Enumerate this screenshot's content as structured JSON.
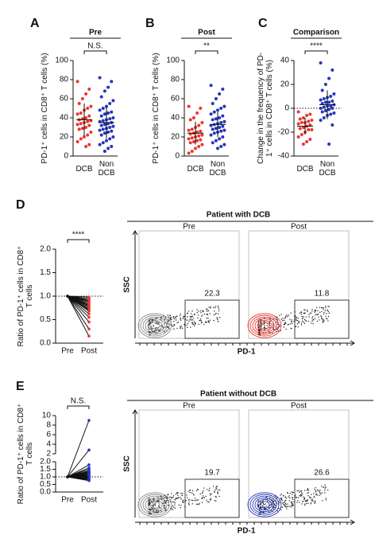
{
  "chart_data": [
    {
      "type": "strip",
      "label": "A",
      "title": "Pre",
      "ylabel": "PD-1⁺ cells in CD8⁺ T cells (%)",
      "categories": [
        "DCB",
        "Non DCB"
      ],
      "ylim": [
        0,
        100
      ],
      "yticks": [
        0,
        20,
        40,
        60,
        80,
        100
      ],
      "annotation": "N.S.",
      "series": [
        {
          "color": "#e8382f",
          "mean": 38,
          "sd": 17,
          "values": [
            78,
            70,
            65,
            60,
            55,
            52,
            50,
            48,
            45,
            44,
            42,
            40,
            39,
            38,
            37,
            36,
            35,
            34,
            33,
            32,
            30,
            29,
            28,
            25,
            22,
            20,
            18,
            15,
            12,
            10
          ]
        },
        {
          "color": "#2536b8",
          "mean": 35,
          "sd": 17,
          "values": [
            82,
            78,
            72,
            68,
            62,
            58,
            55,
            52,
            50,
            48,
            46,
            45,
            44,
            42,
            40,
            39,
            38,
            37,
            36,
            35,
            34,
            33,
            32,
            31,
            30,
            29,
            28,
            27,
            26,
            25,
            24,
            22,
            20,
            18,
            16,
            14,
            12,
            10,
            8,
            5
          ]
        }
      ]
    },
    {
      "type": "strip",
      "label": "B",
      "title": "Post",
      "ylabel": "PD-1⁺ cells in CD8⁺ T cells (%)",
      "categories": [
        "DCB",
        "Non DCB"
      ],
      "ylim": [
        0,
        100
      ],
      "yticks": [
        0,
        20,
        40,
        60,
        80,
        100
      ],
      "annotation": "**",
      "series": [
        {
          "color": "#e8382f",
          "mean": 24,
          "sd": 12,
          "values": [
            52,
            50,
            45,
            40,
            38,
            35,
            32,
            30,
            28,
            27,
            26,
            25,
            24,
            23,
            22,
            21,
            20,
            19,
            18,
            17,
            16,
            15,
            14,
            12,
            10,
            8,
            5,
            3
          ]
        },
        {
          "color": "#2536b8",
          "mean": 33,
          "sd": 13,
          "values": [
            74,
            70,
            65,
            60,
            55,
            52,
            50,
            48,
            46,
            44,
            42,
            40,
            39,
            38,
            36,
            35,
            34,
            33,
            32,
            31,
            30,
            29,
            28,
            27,
            26,
            25,
            24,
            22,
            20,
            18,
            16,
            14,
            12,
            10,
            8
          ]
        }
      ]
    },
    {
      "type": "strip",
      "label": "C",
      "title": "Comparison",
      "ylabel": "Change in the frequency of PD-1⁺ cells in CD8⁺ T cells (%)",
      "categories": [
        "DCB",
        "Non DCB"
      ],
      "ylim": [
        -40,
        40
      ],
      "yticks": [
        -40,
        -20,
        0,
        20,
        40
      ],
      "refline": 0,
      "annotation": "****",
      "series": [
        {
          "color": "#e8382f",
          "mean": -15,
          "sd": 7,
          "values": [
            -3,
            -5,
            -6,
            -8,
            -9,
            -10,
            -11,
            -12,
            -12,
            -13,
            -14,
            -15,
            -16,
            -17,
            -18,
            -18,
            -20,
            -22,
            -24,
            -26,
            -28,
            -30
          ]
        },
        {
          "color": "#2536b8",
          "mean": 3,
          "sd": 12,
          "values": [
            38,
            32,
            25,
            20,
            15,
            12,
            10,
            9,
            8,
            7,
            6,
            5,
            5,
            4,
            3,
            2,
            2,
            1,
            0,
            0,
            -1,
            -2,
            -3,
            -4,
            -5,
            -6,
            -8,
            -10,
            -14,
            -30
          ]
        }
      ]
    },
    {
      "type": "paired",
      "label": "D",
      "ylabel": "Ratio of PD-1⁺ cells in CD8⁺ T cells",
      "categories": [
        "Pre",
        "Post"
      ],
      "ylim": [
        0,
        2
      ],
      "yticks": [
        {
          "value": 0,
          "label": "0.0"
        },
        0.5,
        {
          "value": 1,
          "label": "1.0"
        },
        1.5,
        {
          "value": 2,
          "label": "2.0"
        }
      ],
      "refline": 1,
      "annotation": "****",
      "color": "#e8382f",
      "pre": [
        1,
        1,
        1,
        1,
        1,
        1,
        1,
        1,
        1,
        1,
        1,
        1,
        1,
        1,
        1,
        1,
        1,
        1
      ],
      "post": [
        0.98,
        0.95,
        0.92,
        0.9,
        0.88,
        0.85,
        0.82,
        0.8,
        0.78,
        0.75,
        0.72,
        0.7,
        0.68,
        0.62,
        0.55,
        0.45,
        0.3,
        0.15
      ]
    },
    {
      "type": "flow",
      "title": "Patient with DCB",
      "xlabel": "PD-1",
      "ylabel": "SSC",
      "panels": [
        {
          "title": "Pre",
          "gate": 22.3,
          "color": "#8a8a8a"
        },
        {
          "title": "Post",
          "gate": 11.8,
          "color": "#e8382f"
        }
      ]
    },
    {
      "type": "paired",
      "label": "E",
      "ylabel": "Ratio of PD-1⁺ cells in CD8⁺ T cells",
      "categories": [
        "Pre",
        "Post"
      ],
      "ylim": [
        0,
        2
      ],
      "yticks": [
        {
          "value": 0,
          "label": "0.0"
        },
        0.5,
        {
          "value": 1,
          "label": "1.0"
        },
        1.5,
        {
          "value": 2,
          "label": "2.0"
        }
      ],
      "ylim_upper": [
        2,
        10
      ],
      "yticks_upper": [
        2,
        4,
        6,
        8,
        10
      ],
      "refline": 1,
      "annotation": "N.S.",
      "color": "#2536b8",
      "pre": [
        1,
        1,
        1,
        1,
        1,
        1,
        1,
        1,
        1,
        1,
        1,
        1,
        1,
        1,
        1,
        1,
        1,
        1,
        1,
        1,
        1,
        1
      ],
      "post": [
        9,
        2.8,
        1.8,
        1.6,
        1.5,
        1.4,
        1.35,
        1.3,
        1.25,
        1.2,
        1.15,
        1.1,
        1.05,
        1.02,
        1,
        0.98,
        0.95,
        0.92,
        0.9,
        0.85,
        0.8,
        0.75
      ]
    },
    {
      "type": "flow",
      "title": "Patient without DCB",
      "xlabel": "PD-1",
      "ylabel": "SSC",
      "panels": [
        {
          "title": "Pre",
          "gate": 19.7,
          "color": "#8a8a8a"
        },
        {
          "title": "Post",
          "gate": 26.6,
          "color": "#2536b8"
        }
      ]
    }
  ]
}
